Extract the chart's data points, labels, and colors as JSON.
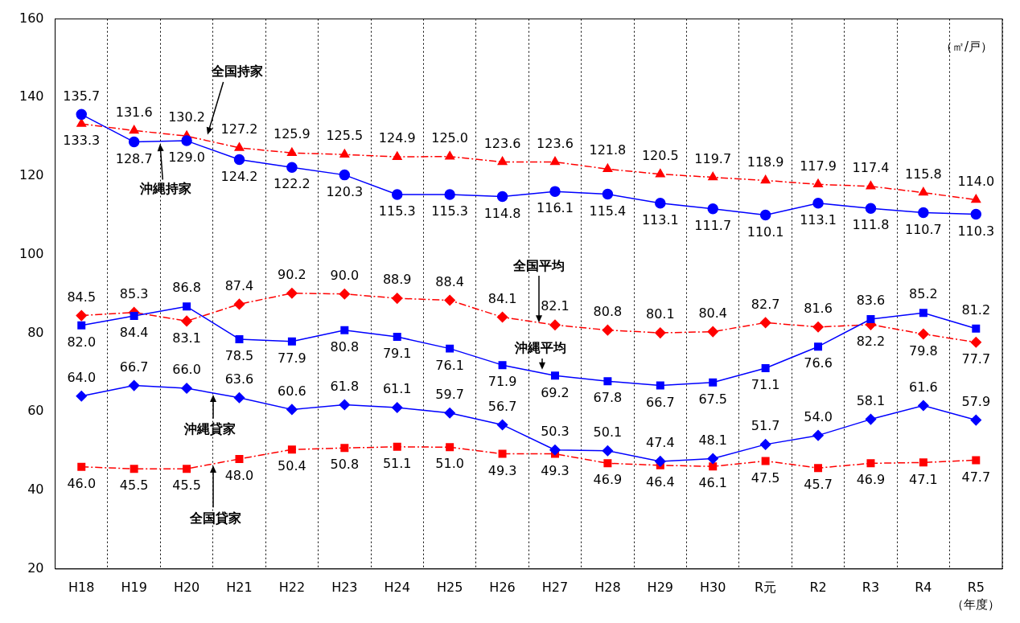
{
  "chart_data": {
    "type": "line",
    "ylabel": "（㎡/戸）",
    "xlabel": "（年度）",
    "categories": [
      "H18",
      "H19",
      "H20",
      "H21",
      "H22",
      "H23",
      "H24",
      "H25",
      "H26",
      "H27",
      "H28",
      "H29",
      "H30",
      "R元",
      "R2",
      "R3",
      "R4",
      "R5"
    ],
    "ylim": [
      20,
      160
    ],
    "yticks": [
      20,
      40,
      60,
      80,
      100,
      120,
      140,
      160
    ],
    "grid": "x",
    "legend": false,
    "series": [
      {
        "name": "沖縄持家",
        "color": "#0000ff",
        "marker": "circle",
        "line_style": "solid",
        "values": [
          135.7,
          128.7,
          129.0,
          124.2,
          122.2,
          120.3,
          115.3,
          115.3,
          114.8,
          116.1,
          115.4,
          113.1,
          111.7,
          110.1,
          113.1,
          111.8,
          110.7,
          110.3
        ],
        "value_labels": [
          "135.7",
          "128.7",
          "129.0",
          "124.2",
          "122.2",
          "120.3",
          "115.3",
          "115.3",
          "114.8",
          "116.1",
          "115.4",
          "113.1",
          "111.7",
          "110.1",
          "113.1",
          "111.8",
          "110.7",
          "110.3"
        ]
      },
      {
        "name": "全国持家",
        "color": "#ff0000",
        "marker": "triangle",
        "line_style": "dashed",
        "values": [
          133.3,
          131.6,
          130.2,
          127.2,
          125.9,
          125.5,
          124.9,
          125.0,
          123.6,
          123.6,
          121.8,
          120.5,
          119.7,
          118.9,
          117.9,
          117.4,
          115.8,
          114.0
        ],
        "value_labels": [
          "133.3",
          "131.6",
          "130.2",
          "127.2",
          "125.9",
          "125.5",
          "124.9",
          "125.0",
          "123.6",
          "123.6",
          "121.8",
          "120.5",
          "119.7",
          "118.9",
          "117.9",
          "117.4",
          "115.8",
          "114.0"
        ]
      },
      {
        "name": "沖縄平均",
        "color": "#0000ff",
        "marker": "square",
        "line_style": "solid",
        "values": [
          82.0,
          84.4,
          86.8,
          78.5,
          77.9,
          80.8,
          79.1,
          76.1,
          71.9,
          69.2,
          67.8,
          66.7,
          67.5,
          71.1,
          76.6,
          83.6,
          85.2,
          81.2
        ],
        "value_labels": [
          "82.0",
          "84.4",
          "86.8",
          "78.5",
          "77.9",
          "80.8",
          "79.1",
          "76.1",
          "71.9",
          "69.2",
          "67.8",
          "66.7",
          "67.5",
          "71.1",
          "76.6",
          "83.6",
          "85.2",
          "81.2"
        ]
      },
      {
        "name": "全国平均",
        "color": "#ff0000",
        "marker": "diamond",
        "line_style": "dashed",
        "values": [
          84.5,
          85.3,
          83.1,
          87.4,
          90.2,
          90.0,
          88.9,
          88.4,
          84.1,
          82.1,
          80.8,
          80.1,
          80.4,
          82.7,
          81.6,
          82.2,
          79.8,
          77.7
        ],
        "value_labels": [
          "84.5",
          "85.3",
          "83.1",
          "87.4",
          "90.2",
          "90.0",
          "88.9",
          "88.4",
          "84.1",
          "82.1",
          "80.8",
          "80.1",
          "80.4",
          "82.7",
          "81.6",
          "82.2",
          "79.8",
          "77.7"
        ]
      },
      {
        "name": "沖縄貸家",
        "color": "#0000ff",
        "marker": "diamond",
        "line_style": "solid",
        "values": [
          64.0,
          66.7,
          66.0,
          63.6,
          60.6,
          61.8,
          61.1,
          59.7,
          56.7,
          50.3,
          50.1,
          47.4,
          48.1,
          51.7,
          54.0,
          58.1,
          61.6,
          57.9
        ],
        "value_labels": [
          "64.0",
          "66.7",
          "66.0",
          "63.6",
          "60.6",
          "61.8",
          "61.1",
          "59.7",
          "56.7",
          "50.3",
          "50.1",
          "47.4",
          "48.1",
          "51.7",
          "54.0",
          "58.1",
          "61.6",
          "57.9"
        ]
      },
      {
        "name": "全国貸家",
        "color": "#ff0000",
        "marker": "square",
        "line_style": "dashed",
        "values": [
          46.0,
          45.5,
          45.5,
          48.0,
          50.4,
          50.8,
          51.1,
          51.0,
          49.3,
          49.3,
          46.9,
          46.4,
          46.1,
          47.5,
          45.7,
          46.9,
          47.1,
          47.7
        ],
        "value_labels": [
          "46.0",
          "45.5",
          "45.5",
          "48.0",
          "50.4",
          "50.8",
          "51.1",
          "51.0",
          "49.3",
          "49.3",
          "46.9",
          "46.4",
          "46.1",
          "47.5",
          "45.7",
          "46.9",
          "47.1",
          "47.7"
        ]
      }
    ]
  }
}
